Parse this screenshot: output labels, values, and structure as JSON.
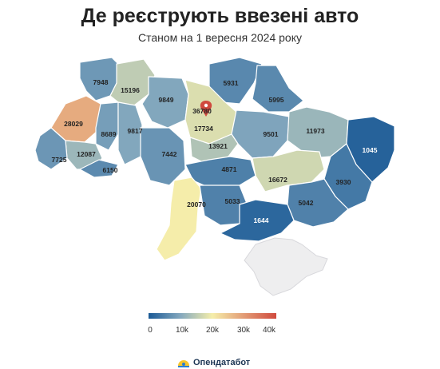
{
  "title": "Де реєструють ввезені авто",
  "subtitle": "Станом на 1 вересня 2024 року",
  "brand": "Опендатабот",
  "colors": {
    "low": "#1b5a96",
    "mid": "#f5eeaa",
    "high": "#d04a3e",
    "no_data": "#eeeeef"
  },
  "legend": {
    "ticks": [
      "0",
      "10k",
      "20k",
      "30k",
      "40k"
    ],
    "min": 0,
    "max": 40000
  },
  "chart_data": {
    "type": "choropleth",
    "title": "Де реєструють ввезені авто",
    "subtitle": "Станом на 1 вересня 2024 року",
    "values": [
      7948,
      15196,
      9849,
      36780,
      5931,
      5995,
      28029,
      8689,
      9817,
      17734,
      9501,
      11973,
      12087,
      7725,
      6150,
      7442,
      13921,
      1045,
      4871,
      16672,
      3930,
      20070,
      5033,
      5042,
      1644
    ],
    "scale_range": [
      0,
      40000
    ]
  }
}
